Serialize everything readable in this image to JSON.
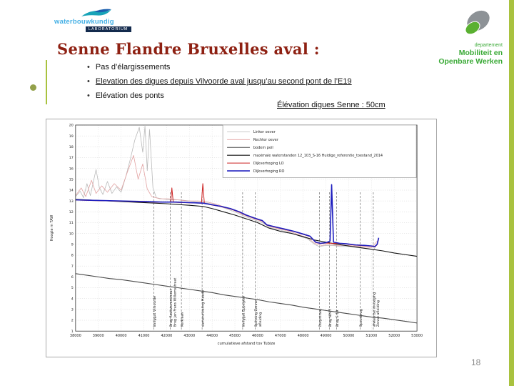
{
  "colors": {
    "accent_green": "#a9c23f",
    "title_red": "#8e2012",
    "mow_green": "#39a935",
    "wl_blue": "#45b0e5",
    "wl_navy": "#132a4d"
  },
  "header": {
    "wl_logo": {
      "name": "waterbouwkundig",
      "sub": "LABORATORIUM"
    },
    "mow_logo": {
      "dept": "departement",
      "line1": "Mobiliteit en",
      "line2": "Openbare Werken"
    }
  },
  "title": "Senne Flandre Bruxelles aval :",
  "bullets": [
    {
      "text": "Pas d’élargissements",
      "underline": false
    },
    {
      "text": "Elevation des digues depuis Vilvoorde aval  jusqu’au second pont de l’E19",
      "underline": true
    },
    {
      "text": "Elévation des ponts",
      "underline": false
    }
  ],
  "caption": "Élévation digues Senne : 50cm",
  "page_number": "18",
  "chart_data": {
    "type": "line",
    "title": "",
    "xlabel": "cumulatieve afstand tov Tubize",
    "ylabel": "Hoogte m TAW",
    "xlim": [
      38000,
      53000
    ],
    "ylim": [
      1,
      20
    ],
    "x_ticks": [
      38000,
      39000,
      40000,
      41000,
      42000,
      43000,
      44000,
      45000,
      46000,
      47000,
      48000,
      49000,
      50000,
      51000,
      52000,
      53000
    ],
    "y_ticks": [
      1,
      2,
      3,
      4,
      5,
      6,
      7,
      8,
      9,
      10,
      11,
      12,
      13,
      14,
      15,
      16,
      17,
      18,
      19,
      20
    ],
    "grid": true,
    "legend_position": "top-center",
    "series": [
      {
        "name": "Linker oever",
        "color": "#b9b9b9",
        "width": 0.8,
        "points": [
          [
            38000,
            13.4
          ],
          [
            38200,
            13.9
          ],
          [
            38350,
            13.3
          ],
          [
            38500,
            14.6
          ],
          [
            38650,
            13.5
          ],
          [
            38900,
            15.9
          ],
          [
            39050,
            14.2
          ],
          [
            39200,
            13.6
          ],
          [
            39400,
            14.8
          ],
          [
            39600,
            13.7
          ],
          [
            39800,
            14.3
          ],
          [
            40000,
            13.8
          ],
          [
            40200,
            15.2
          ],
          [
            40400,
            16.8
          ],
          [
            40600,
            18.6
          ],
          [
            40800,
            19.8
          ],
          [
            40950,
            17.5
          ],
          [
            41050,
            19.9
          ],
          [
            41150,
            15.8
          ],
          [
            41250,
            19.6
          ],
          [
            41400,
            14.2
          ],
          [
            41550,
            13.3
          ],
          [
            41800,
            13.2
          ],
          [
            42200,
            13.1
          ],
          [
            42600,
            13.1
          ],
          [
            43000,
            13.0
          ],
          [
            43400,
            12.9
          ],
          [
            43800,
            12.8
          ],
          [
            44200,
            12.6
          ],
          [
            44600,
            12.3
          ],
          [
            45000,
            12.0
          ],
          [
            45400,
            11.6
          ],
          [
            45800,
            11.3
          ],
          [
            46200,
            11.0
          ],
          [
            46600,
            10.5
          ],
          [
            47000,
            10.3
          ],
          [
            47400,
            10.1
          ],
          [
            47800,
            9.8
          ],
          [
            48200,
            9.5
          ],
          [
            48500,
            9.0
          ],
          [
            48700,
            8.8
          ],
          [
            49000,
            8.9
          ],
          [
            49300,
            8.9
          ],
          [
            49600,
            8.8
          ],
          [
            50000,
            8.8
          ],
          [
            50400,
            8.7
          ],
          [
            50800,
            8.6
          ],
          [
            51100,
            8.5
          ],
          [
            51300,
            9.3
          ]
        ]
      },
      {
        "name": "Rechter oever",
        "color": "#e2a1a1",
        "width": 0.8,
        "points": [
          [
            38000,
            13.5
          ],
          [
            38250,
            14.2
          ],
          [
            38450,
            13.4
          ],
          [
            38700,
            14.9
          ],
          [
            38900,
            13.7
          ],
          [
            39150,
            14.4
          ],
          [
            39400,
            13.8
          ],
          [
            39700,
            14.6
          ],
          [
            40000,
            14.0
          ],
          [
            40300,
            15.8
          ],
          [
            40550,
            17.2
          ],
          [
            40750,
            15.0
          ],
          [
            40950,
            16.4
          ],
          [
            41150,
            14.1
          ],
          [
            41350,
            13.4
          ],
          [
            41700,
            13.2
          ],
          [
            42100,
            13.2
          ],
          [
            42500,
            13.1
          ],
          [
            42900,
            13.0
          ],
          [
            43400,
            13.0
          ],
          [
            43800,
            12.9
          ],
          [
            44200,
            12.7
          ],
          [
            44600,
            12.4
          ],
          [
            45000,
            12.1
          ],
          [
            45400,
            11.7
          ],
          [
            45800,
            11.4
          ],
          [
            46200,
            11.1
          ],
          [
            46600,
            10.6
          ],
          [
            47000,
            10.4
          ],
          [
            47400,
            10.2
          ],
          [
            47800,
            9.9
          ],
          [
            48200,
            9.6
          ],
          [
            48500,
            9.1
          ],
          [
            48800,
            8.9
          ],
          [
            49100,
            9.0
          ],
          [
            49500,
            8.9
          ],
          [
            50000,
            8.9
          ],
          [
            50500,
            8.8
          ],
          [
            51000,
            8.7
          ],
          [
            51300,
            9.4
          ]
        ]
      },
      {
        "name": "bodem peil",
        "color": "#4a4a4a",
        "width": 1.1,
        "points": [
          [
            38000,
            6.3
          ],
          [
            38500,
            6.15
          ],
          [
            39000,
            6.0
          ],
          [
            39500,
            5.85
          ],
          [
            40000,
            5.75
          ],
          [
            40500,
            5.6
          ],
          [
            41000,
            5.45
          ],
          [
            41500,
            5.3
          ],
          [
            42000,
            5.15
          ],
          [
            42500,
            5.0
          ],
          [
            43000,
            4.85
          ],
          [
            43500,
            4.7
          ],
          [
            44000,
            4.55
          ],
          [
            44500,
            4.35
          ],
          [
            45000,
            4.2
          ],
          [
            45500,
            4.05
          ],
          [
            46000,
            3.9
          ],
          [
            46500,
            3.7
          ],
          [
            47000,
            3.55
          ],
          [
            47500,
            3.4
          ],
          [
            48000,
            3.2
          ],
          [
            48500,
            3.05
          ],
          [
            49000,
            2.9
          ],
          [
            49500,
            2.75
          ],
          [
            50000,
            2.6
          ],
          [
            50500,
            2.45
          ],
          [
            51000,
            2.3
          ],
          [
            51500,
            2.2
          ],
          [
            52000,
            2.05
          ],
          [
            52500,
            1.9
          ],
          [
            53000,
            1.75
          ]
        ]
      },
      {
        "name": "maximale waterstanden 12_103_S-16 Huidige_referentie_toestand_2014",
        "color": "#111111",
        "width": 1.1,
        "points": [
          [
            38000,
            13.15
          ],
          [
            39000,
            13.05
          ],
          [
            40000,
            12.95
          ],
          [
            41000,
            12.85
          ],
          [
            42000,
            12.75
          ],
          [
            43000,
            12.6
          ],
          [
            43600,
            12.5
          ],
          [
            44000,
            12.3
          ],
          [
            44500,
            12.0
          ],
          [
            45000,
            11.7
          ],
          [
            45500,
            11.35
          ],
          [
            46000,
            11.0
          ],
          [
            46500,
            10.5
          ],
          [
            47000,
            10.2
          ],
          [
            47500,
            10.0
          ],
          [
            48000,
            9.7
          ],
          [
            48500,
            9.4
          ],
          [
            49000,
            9.2
          ],
          [
            49500,
            9.0
          ],
          [
            50000,
            8.85
          ],
          [
            50500,
            8.7
          ],
          [
            51000,
            8.55
          ],
          [
            51500,
            8.4
          ],
          [
            52000,
            8.2
          ],
          [
            52500,
            8.05
          ],
          [
            53000,
            7.9
          ]
        ]
      },
      {
        "name": "Dijkverhoging LO",
        "color": "#cc2020",
        "width": 1.0,
        "points": [
          [
            38000,
            13.08
          ],
          [
            39000,
            13.02
          ],
          [
            40000,
            12.98
          ],
          [
            41000,
            12.92
          ],
          [
            41800,
            12.88
          ],
          [
            42180,
            12.9
          ],
          [
            42230,
            14.2
          ],
          [
            42290,
            12.88
          ],
          [
            43000,
            12.83
          ],
          [
            43530,
            12.8
          ],
          [
            43590,
            14.6
          ],
          [
            43660,
            12.78
          ],
          [
            44000,
            12.62
          ],
          [
            44400,
            12.47
          ],
          [
            44800,
            12.27
          ],
          [
            45200,
            11.97
          ],
          [
            45500,
            11.67
          ],
          [
            45900,
            11.37
          ],
          [
            46200,
            11.17
          ],
          [
            46400,
            10.77
          ],
          [
            46800,
            10.57
          ],
          [
            47200,
            10.37
          ],
          [
            47600,
            10.17
          ],
          [
            48000,
            9.92
          ],
          [
            48300,
            9.72
          ],
          [
            48550,
            9.17
          ],
          [
            48750,
            9.07
          ],
          [
            49000,
            9.12
          ],
          [
            49250,
            9.1
          ],
          [
            49600,
            9.07
          ],
          [
            49900,
            9.02
          ],
          [
            50300,
            8.92
          ],
          [
            50700,
            8.87
          ],
          [
            51000,
            8.82
          ],
          [
            51150,
            8.77
          ],
          [
            51250,
            8.97
          ],
          [
            51320,
            9.55
          ]
        ]
      },
      {
        "name": "Dijkverhoging RO",
        "color": "#1f1fbf",
        "width": 1.6,
        "points": [
          [
            38000,
            13.1
          ],
          [
            39000,
            13.05
          ],
          [
            40000,
            13.0
          ],
          [
            41000,
            12.95
          ],
          [
            41800,
            12.9
          ],
          [
            42400,
            12.9
          ],
          [
            43000,
            12.85
          ],
          [
            43600,
            12.8
          ],
          [
            44000,
            12.65
          ],
          [
            44400,
            12.5
          ],
          [
            44800,
            12.3
          ],
          [
            45200,
            12.0
          ],
          [
            45500,
            11.7
          ],
          [
            45900,
            11.4
          ],
          [
            46200,
            11.2
          ],
          [
            46400,
            10.8
          ],
          [
            46800,
            10.6
          ],
          [
            47200,
            10.4
          ],
          [
            47600,
            10.2
          ],
          [
            48000,
            9.95
          ],
          [
            48300,
            9.75
          ],
          [
            48550,
            9.2
          ],
          [
            48750,
            9.1
          ],
          [
            49000,
            9.15
          ],
          [
            49180,
            9.3
          ],
          [
            49250,
            14.5
          ],
          [
            49330,
            9.2
          ],
          [
            49600,
            9.1
          ],
          [
            49900,
            9.05
          ],
          [
            50300,
            8.95
          ],
          [
            50700,
            8.9
          ],
          [
            51000,
            8.85
          ],
          [
            51150,
            8.8
          ],
          [
            51250,
            9.0
          ],
          [
            51320,
            9.6
          ]
        ]
      }
    ],
    "markers": [
      {
        "x": 41440,
        "lines": [
          "Inniggat Vilvoorde"
        ]
      },
      {
        "x": 42160,
        "lines": [
          "Brug Radiatorenstraat",
          "Brug Jan Frans Willemsstraat"
        ]
      },
      {
        "x": 42650,
        "lines": [
          "Kerklaan"
        ]
      },
      {
        "x": 43560,
        "lines": [
          "samenvloeiing Heede"
        ]
      },
      {
        "x": 45340,
        "lines": [
          "Inniggat Eppegem"
        ]
      },
      {
        "x": 45900,
        "lines": [
          "Splitsing Zenne",
          "afleiding"
        ]
      },
      {
        "x": 48720,
        "lines": [
          "Dorpstraat"
        ]
      },
      {
        "x": 49160,
        "lines": [
          "Brug N267"
        ]
      },
      {
        "x": 49470,
        "lines": [
          "Brug E-19"
        ]
      },
      {
        "x": 50500,
        "lines": [
          "Spoorbrug"
        ]
      },
      {
        "x": 51080,
        "lines": [
          "afwaartse invoeging",
          "Zenne afleiding"
        ]
      }
    ]
  }
}
